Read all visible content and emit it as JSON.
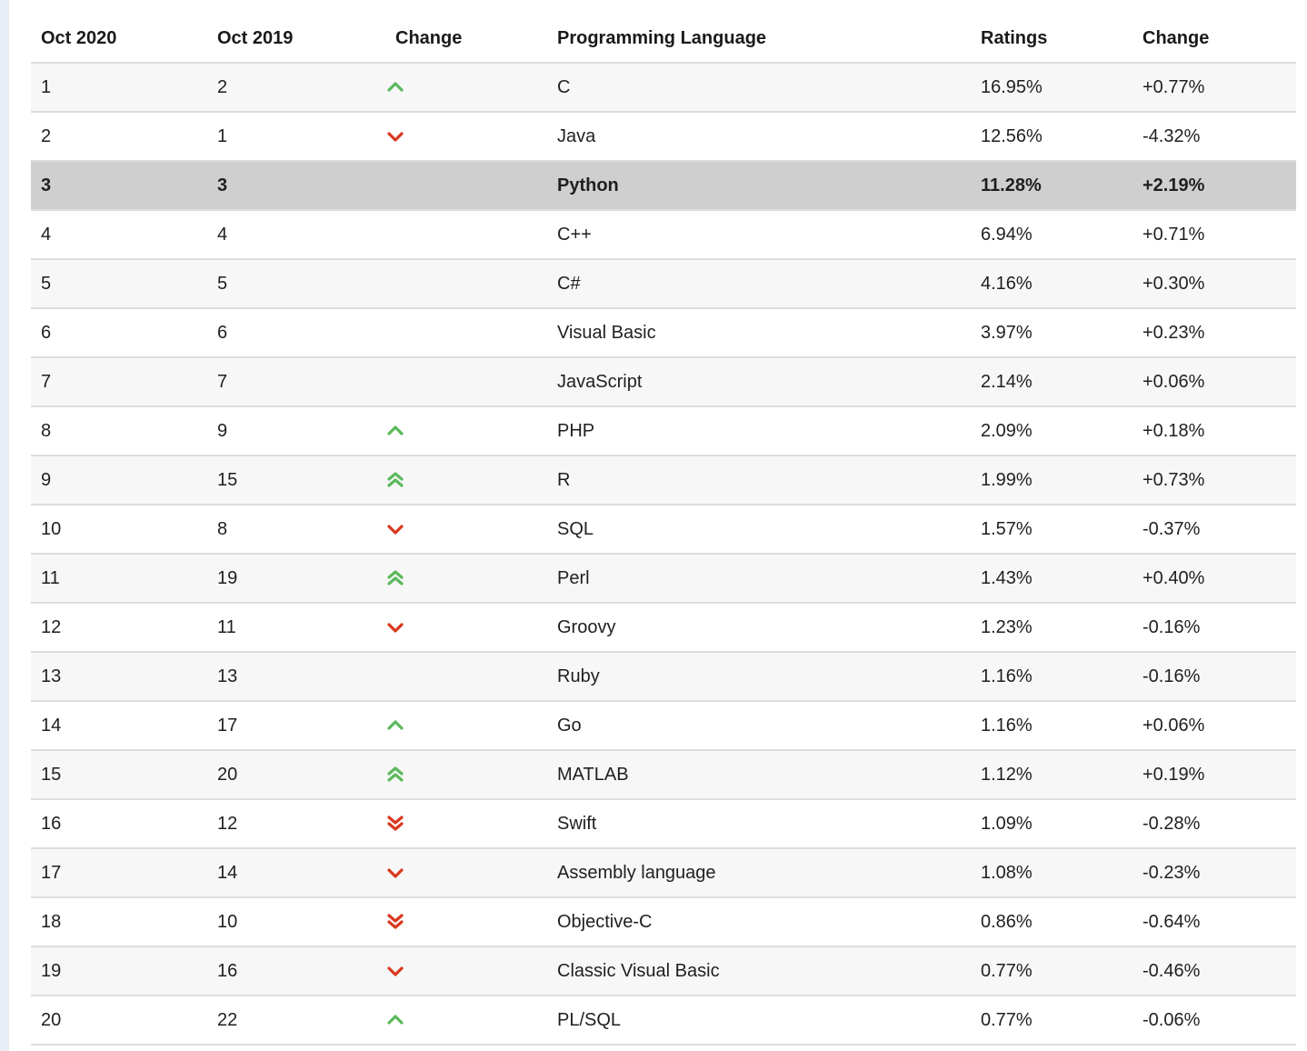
{
  "table": {
    "headers": [
      "Oct 2020",
      "Oct 2019",
      "Change",
      "Programming Language",
      "Ratings",
      "Change"
    ],
    "rows": [
      {
        "oct2020": "1",
        "oct2019": "2",
        "trend": "up",
        "language": "C",
        "rating": "16.95%",
        "change": "+0.77%"
      },
      {
        "oct2020": "2",
        "oct2019": "1",
        "trend": "down",
        "language": "Java",
        "rating": "12.56%",
        "change": "-4.32%"
      },
      {
        "oct2020": "3",
        "oct2019": "3",
        "trend": "none",
        "language": "Python",
        "rating": "11.28%",
        "change": "+2.19%",
        "highlight": true
      },
      {
        "oct2020": "4",
        "oct2019": "4",
        "trend": "none",
        "language": "C++",
        "rating": "6.94%",
        "change": "+0.71%"
      },
      {
        "oct2020": "5",
        "oct2019": "5",
        "trend": "none",
        "language": "C#",
        "rating": "4.16%",
        "change": "+0.30%"
      },
      {
        "oct2020": "6",
        "oct2019": "6",
        "trend": "none",
        "language": "Visual Basic",
        "rating": "3.97%",
        "change": "+0.23%"
      },
      {
        "oct2020": "7",
        "oct2019": "7",
        "trend": "none",
        "language": "JavaScript",
        "rating": "2.14%",
        "change": "+0.06%"
      },
      {
        "oct2020": "8",
        "oct2019": "9",
        "trend": "up",
        "language": "PHP",
        "rating": "2.09%",
        "change": "+0.18%"
      },
      {
        "oct2020": "9",
        "oct2019": "15",
        "trend": "up-double",
        "language": "R",
        "rating": "1.99%",
        "change": "+0.73%"
      },
      {
        "oct2020": "10",
        "oct2019": "8",
        "trend": "down",
        "language": "SQL",
        "rating": "1.57%",
        "change": "-0.37%"
      },
      {
        "oct2020": "11",
        "oct2019": "19",
        "trend": "up-double",
        "language": "Perl",
        "rating": "1.43%",
        "change": "+0.40%"
      },
      {
        "oct2020": "12",
        "oct2019": "11",
        "trend": "down",
        "language": "Groovy",
        "rating": "1.23%",
        "change": "-0.16%"
      },
      {
        "oct2020": "13",
        "oct2019": "13",
        "trend": "none",
        "language": "Ruby",
        "rating": "1.16%",
        "change": "-0.16%"
      },
      {
        "oct2020": "14",
        "oct2019": "17",
        "trend": "up",
        "language": "Go",
        "rating": "1.16%",
        "change": "+0.06%"
      },
      {
        "oct2020": "15",
        "oct2019": "20",
        "trend": "up-double",
        "language": "MATLAB",
        "rating": "1.12%",
        "change": "+0.19%"
      },
      {
        "oct2020": "16",
        "oct2019": "12",
        "trend": "down-double",
        "language": "Swift",
        "rating": "1.09%",
        "change": "-0.28%"
      },
      {
        "oct2020": "17",
        "oct2019": "14",
        "trend": "down",
        "language": "Assembly language",
        "rating": "1.08%",
        "change": "-0.23%"
      },
      {
        "oct2020": "18",
        "oct2019": "10",
        "trend": "down-double",
        "language": "Objective-C",
        "rating": "0.86%",
        "change": "-0.64%"
      },
      {
        "oct2020": "19",
        "oct2019": "16",
        "trend": "down",
        "language": "Classic Visual Basic",
        "rating": "0.77%",
        "change": "-0.46%"
      },
      {
        "oct2020": "20",
        "oct2019": "22",
        "trend": "up",
        "language": "PL/SQL",
        "rating": "0.77%",
        "change": "-0.06%"
      }
    ]
  },
  "colors": {
    "up": "#5cb85c",
    "down": "#d9381e",
    "highlight": "#cfcfcf",
    "row_alt": "#f7f7f7"
  }
}
